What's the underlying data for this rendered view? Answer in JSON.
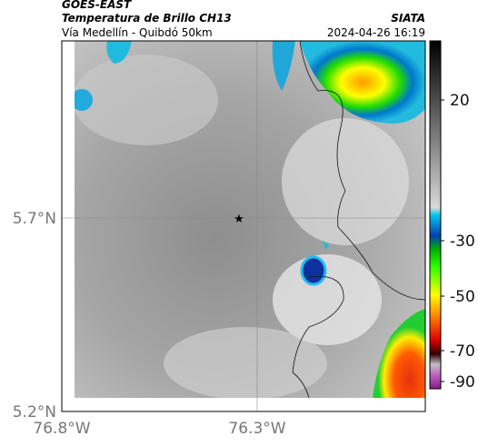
{
  "header": {
    "source": "GOES-EAST",
    "product": "Temperatura de Brillo CH13",
    "route": "Vía Medellín - Quibdó 50km",
    "agency": "SIATA",
    "datetime": "2024-04-26 16:19"
  },
  "map": {
    "lat_labels": [
      "5.7°N",
      "5.2°N"
    ],
    "lon_labels": [
      "76.8°W",
      "76.3°W"
    ]
  },
  "colorbar": {
    "tick_labels": [
      "20",
      "-30",
      "-50",
      "-70",
      "-90"
    ]
  }
}
